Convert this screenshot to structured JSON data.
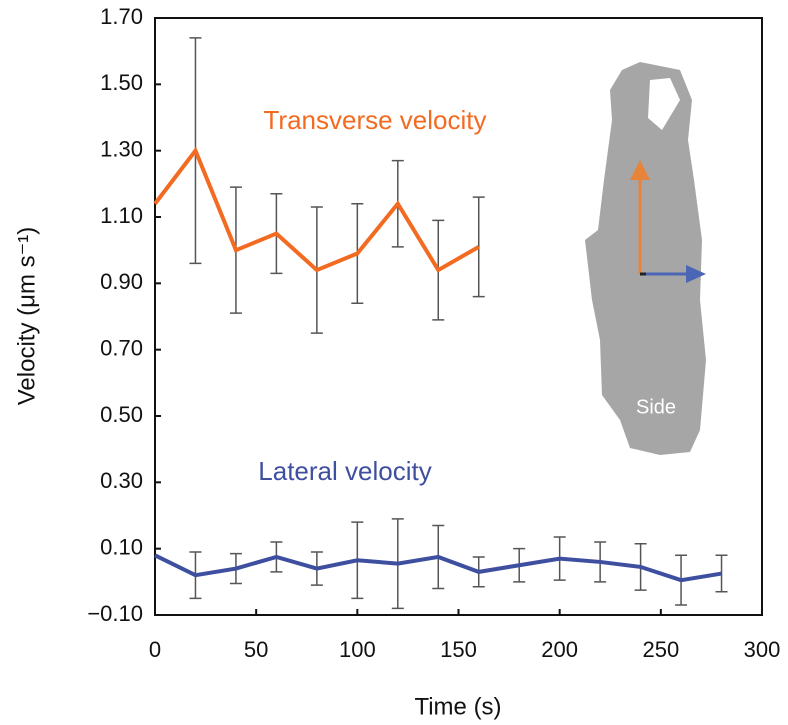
{
  "chart_data": {
    "type": "line",
    "x_label": "Time (s)",
    "y_label": "Velocity (μm s⁻¹)",
    "xlim": [
      0,
      300
    ],
    "xticks": [
      0,
      50,
      100,
      150,
      200,
      250,
      300
    ],
    "ylim": [
      -0.1,
      1.7
    ],
    "yticks": [
      {
        "value": -0.1,
        "label": "−0.10"
      },
      {
        "value": 0.1,
        "label": "0.10"
      },
      {
        "value": 0.3,
        "label": "0.30"
      },
      {
        "value": 0.5,
        "label": "0.50"
      },
      {
        "value": 0.7,
        "label": "0.70"
      },
      {
        "value": 0.9,
        "label": "0.90"
      },
      {
        "value": 1.1,
        "label": "1.10"
      },
      {
        "value": 1.3,
        "label": "1.30"
      },
      {
        "value": 1.5,
        "label": "1.50"
      },
      {
        "value": 1.7,
        "label": "1.70"
      }
    ],
    "series": [
      {
        "name": "Transverse velocity",
        "color": "#f26b21",
        "x": [
          0,
          20,
          40,
          60,
          80,
          100,
          120,
          140,
          160
        ],
        "values": [
          1.14,
          1.3,
          1.0,
          1.05,
          0.94,
          0.99,
          1.14,
          0.94,
          1.01
        ],
        "errors": [
          null,
          0.34,
          0.19,
          0.12,
          0.19,
          0.15,
          0.13,
          0.15,
          0.15
        ]
      },
      {
        "name": "Lateral velocity",
        "color": "#3f4fa0",
        "x": [
          0,
          20,
          40,
          60,
          80,
          100,
          120,
          140,
          160,
          180,
          200,
          220,
          240,
          260,
          280
        ],
        "values": [
          0.08,
          0.02,
          0.04,
          0.075,
          0.04,
          0.065,
          0.055,
          0.075,
          0.03,
          0.05,
          0.07,
          0.06,
          0.045,
          0.005,
          0.025
        ],
        "errors": [
          null,
          0.07,
          0.045,
          0.045,
          0.05,
          0.115,
          0.135,
          0.095,
          0.045,
          0.05,
          0.065,
          0.06,
          0.07,
          0.075,
          0.055
        ]
      }
    ],
    "inset_label": "Side"
  }
}
